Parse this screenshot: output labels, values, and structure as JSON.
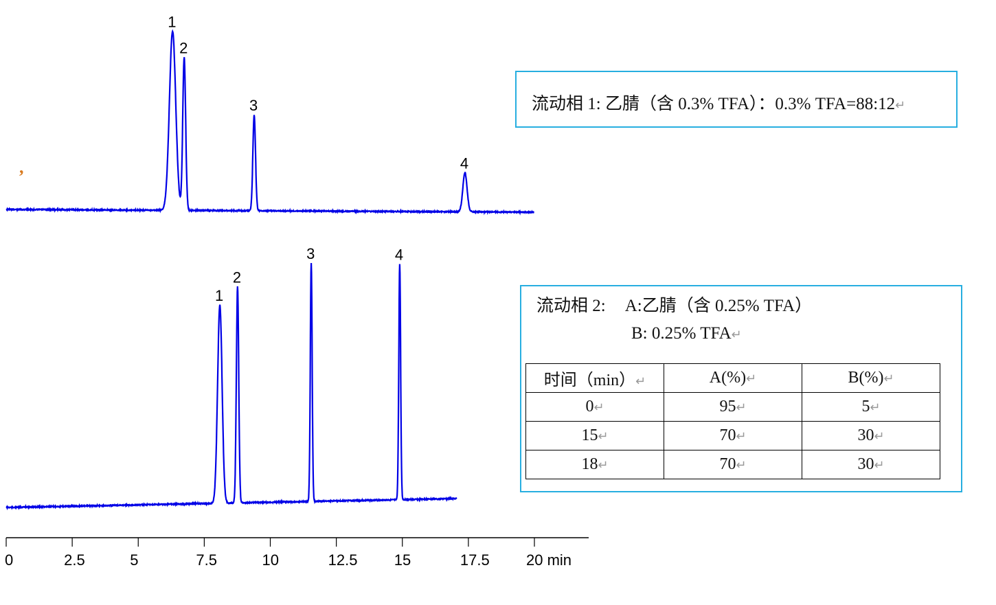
{
  "chart_data": {
    "type": "line",
    "title": "",
    "xlabel": "min",
    "xlim": [
      0,
      20
    ],
    "x_ticks": [
      "0",
      "2.5",
      "5",
      "7.5",
      "10",
      "12.5",
      "15",
      "17.5",
      "20 min"
    ],
    "x_tick_values": [
      0,
      2.5,
      5,
      7.5,
      10,
      12.5,
      15,
      17.5,
      20
    ],
    "y_axis": "none (relative intensity)",
    "grid": false,
    "line_color": "#0000e6",
    "series": [
      {
        "trace": "upper",
        "x_range": [
          0,
          20
        ],
        "peaks": [
          {
            "label": "1",
            "rt": 6.3,
            "height": 261,
            "width": 0.12
          },
          {
            "label": "2",
            "rt": 6.74,
            "height": 223,
            "width": 0.055
          },
          {
            "label": "3",
            "rt": 9.39,
            "height": 140,
            "width": 0.05
          },
          {
            "label": "4",
            "rt": 17.37,
            "height": 57,
            "width": 0.08
          }
        ]
      },
      {
        "trace": "lower",
        "x_range": [
          0,
          17.06
        ],
        "peaks": [
          {
            "label": "1",
            "rt": 8.09,
            "height": 289,
            "width": 0.085
          },
          {
            "label": "2",
            "rt": 8.76,
            "height": 315,
            "width": 0.045
          },
          {
            "label": "3",
            "rt": 11.55,
            "height": 347,
            "width": 0.035
          },
          {
            "label": "4",
            "rt": 14.9,
            "height": 343,
            "width": 0.035
          }
        ]
      }
    ]
  },
  "box1": {
    "text": "流动相 1:  乙腈（含 0.3% TFA）：0.3% TFA=88:12"
  },
  "box2": {
    "label": "流动相 2:",
    "line_a": "A:乙腈（含 0.25% TFA）",
    "line_b": "B: 0.25% TFA",
    "table": {
      "headers": [
        "时间（min）",
        "A(%)",
        "B(%)"
      ],
      "rows": [
        [
          "0",
          "95",
          "5"
        ],
        [
          "15",
          "70",
          "30"
        ],
        [
          "18",
          "70",
          "30"
        ]
      ]
    }
  },
  "stray_mark": ","
}
